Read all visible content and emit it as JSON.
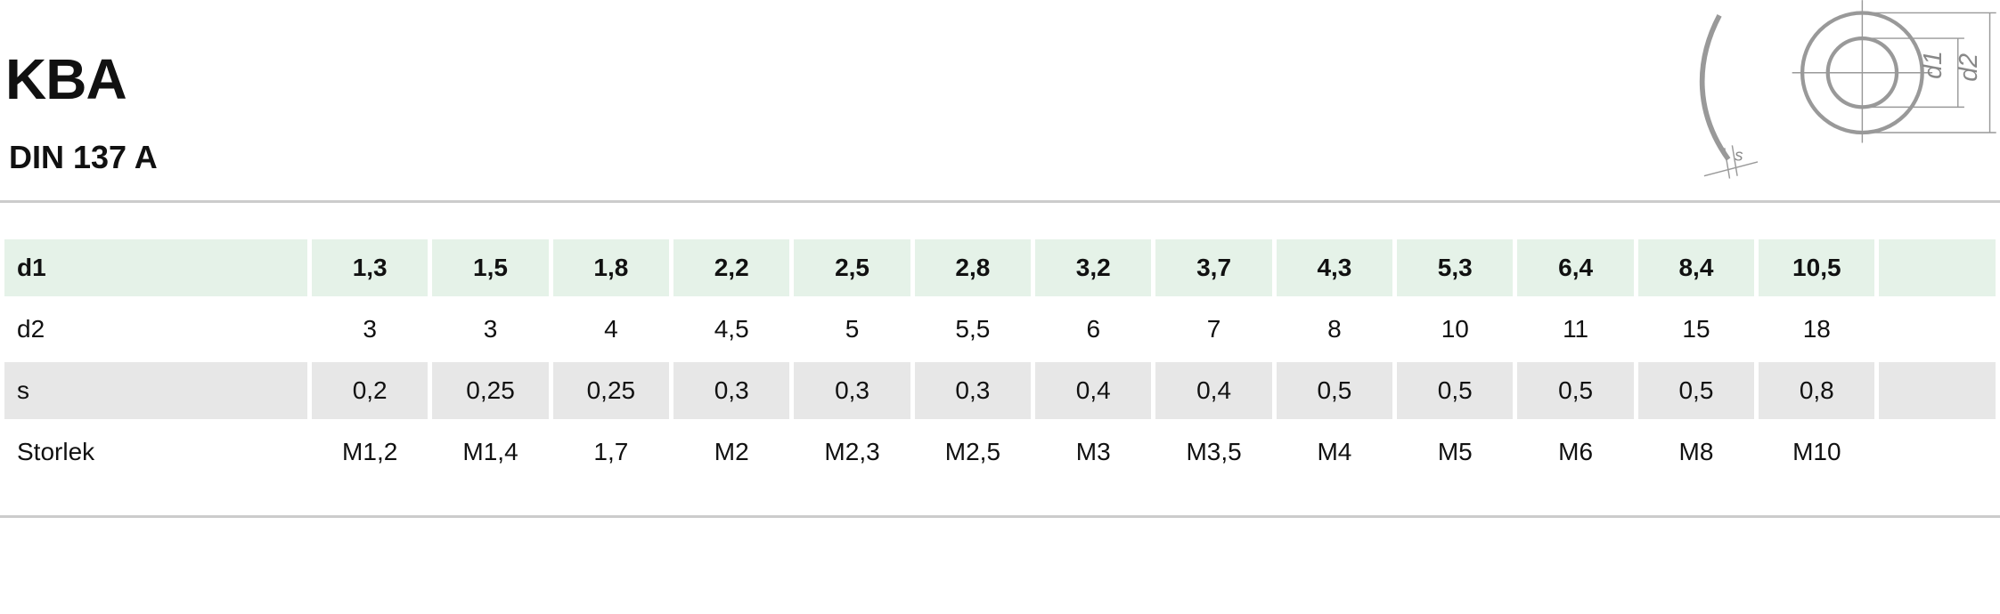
{
  "header": {
    "title": "KBA",
    "subtitle": "DIN 137 A"
  },
  "diagram": {
    "labels": [
      "d1",
      "d2",
      "s"
    ]
  },
  "table": {
    "rows": [
      {
        "label": "d1",
        "values": [
          "1,3",
          "1,5",
          "1,8",
          "2,2",
          "2,5",
          "2,8",
          "3,2",
          "3,7",
          "4,3",
          "5,3",
          "6,4",
          "8,4",
          "10,5"
        ]
      },
      {
        "label": "d2",
        "values": [
          "3",
          "3",
          "4",
          "4,5",
          "5",
          "5,5",
          "6",
          "7",
          "8",
          "10",
          "11",
          "15",
          "18"
        ]
      },
      {
        "label": "s",
        "values": [
          "0,2",
          "0,25",
          "0,25",
          "0,3",
          "0,3",
          "0,3",
          "0,4",
          "0,4",
          "0,5",
          "0,5",
          "0,5",
          "0,5",
          "0,8"
        ]
      },
      {
        "label": "Storlek",
        "values": [
          "M1,2",
          "M1,4",
          "1,7",
          "M2",
          "M2,3",
          "M2,5",
          "M3",
          "M3,5",
          "M4",
          "M5",
          "M6",
          "M8",
          "M10"
        ]
      }
    ]
  }
}
